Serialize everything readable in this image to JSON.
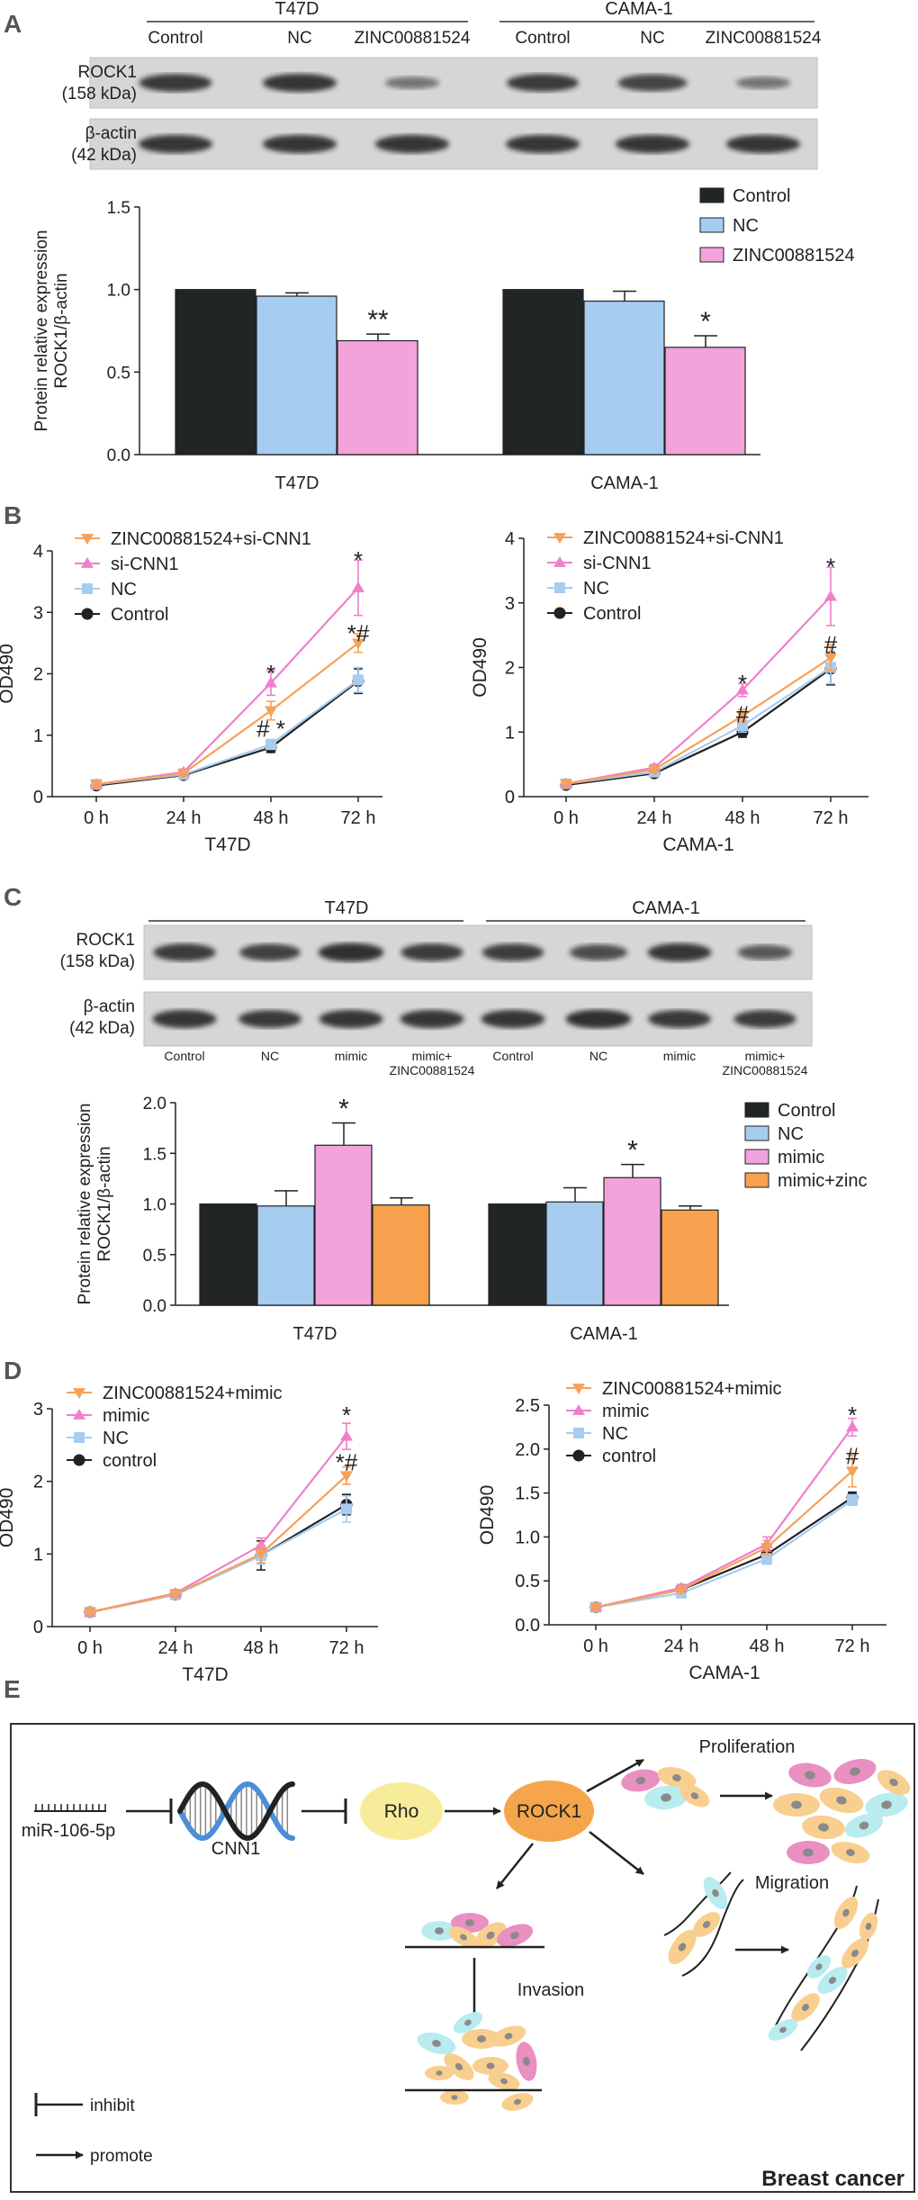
{
  "panels": {
    "a": {
      "letter": "A",
      "blot": {
        "groups": [
          "T47D",
          "CAMA-1"
        ],
        "lanes": [
          "Control",
          "NC",
          "ZINC00881524",
          "Control",
          "NC",
          "ZINC00881524"
        ],
        "rows": [
          {
            "name": "ROCK1",
            "kda": "(158 kDa)",
            "intensity": [
              0.82,
              0.85,
              0.3,
              0.8,
              0.72,
              0.3
            ]
          },
          {
            "name": "β-actin",
            "kda": "(42 kDa)",
            "intensity": [
              0.85,
              0.85,
              0.85,
              0.85,
              0.85,
              0.85
            ]
          }
        ]
      }
    },
    "b": {
      "letter": "B"
    },
    "c": {
      "letter": "C",
      "blot": {
        "groups": [
          "T47D",
          "CAMA-1"
        ],
        "lanes": [
          "Control",
          "NC",
          "mimic",
          "mimic+\nZINC00881524",
          "Control",
          "NC",
          "mimic",
          "mimic+\nZINC00881524"
        ],
        "rows": [
          {
            "name": "ROCK1",
            "kda": "(158 kDa)",
            "intensity": [
              0.8,
              0.75,
              0.9,
              0.8,
              0.78,
              0.65,
              0.85,
              0.55
            ]
          },
          {
            "name": "β-actin",
            "kda": "(42 kDa)",
            "intensity": [
              0.85,
              0.82,
              0.85,
              0.85,
              0.85,
              0.9,
              0.82,
              0.8
            ]
          }
        ]
      }
    },
    "d": {
      "letter": "D"
    },
    "e": {
      "letter": "E",
      "labels": {
        "mir": "miR-106-5p",
        "cnn1": "CNN1",
        "rho": "Rho",
        "rock1": "ROCK1",
        "proliferation": "Proliferation",
        "migration": "Migration",
        "invasion": "Invasion",
        "inhibit": "inhibit",
        "promote": "promote",
        "title": "Breast cancer"
      },
      "colors": {
        "rho": "#f7ec9a",
        "rock1": "#f5a54b",
        "border": "#333333",
        "dna_black": "#222222",
        "dna_blue": "#4a8fd6"
      },
      "cell_colors": [
        "#e98fc1",
        "#f8cf8f",
        "#b9ecef"
      ]
    }
  },
  "chart_data": [
    {
      "id": "bar-a",
      "type": "bar",
      "ylabel": [
        "Protein relative expression",
        "ROCK1/β-actin"
      ],
      "ylim": [
        0,
        1.5
      ],
      "yticks": [
        "0.0",
        "0.5",
        "1.0",
        "1.5"
      ],
      "categories": [
        "T47D",
        "CAMA-1"
      ],
      "series": [
        {
          "name": "Control",
          "color": "#222526",
          "values": [
            1.0,
            1.0
          ],
          "err": [
            0,
            0
          ]
        },
        {
          "name": "NC",
          "color": "#a6ccf0",
          "values": [
            0.96,
            0.93
          ],
          "err": [
            0.02,
            0.06
          ]
        },
        {
          "name": "ZINC00881524",
          "color": "#f2a3db",
          "values": [
            0.69,
            0.65
          ],
          "err": [
            0.04,
            0.07
          ]
        }
      ],
      "annotations": [
        {
          "category": 0,
          "series": 2,
          "text": "**"
        },
        {
          "category": 1,
          "series": 2,
          "text": "*"
        }
      ],
      "legend": "top-right"
    },
    {
      "id": "line-b1",
      "type": "line",
      "xlabel": "T47D",
      "ylabel": "OD490",
      "categories": [
        "0 h",
        "24 h",
        "48 h",
        "72 h"
      ],
      "ylim": [
        0,
        4
      ],
      "yticks": [
        "0",
        "1",
        "2",
        "3",
        "4"
      ],
      "series": [
        {
          "name": "ZINC00881524+si-CNN1",
          "marker": "tri-down",
          "color": "#f5a15a",
          "values": [
            0.2,
            0.38,
            1.4,
            2.5
          ],
          "err": [
            0.03,
            0.05,
            0.15,
            0.15
          ]
        },
        {
          "name": "si-CNN1",
          "marker": "tri-up",
          "color": "#ef7fcb",
          "values": [
            0.2,
            0.4,
            1.85,
            3.4
          ],
          "err": [
            0.03,
            0.05,
            0.2,
            0.45
          ]
        },
        {
          "name": "NC",
          "marker": "square",
          "color": "#a6ccf0",
          "values": [
            0.2,
            0.36,
            0.85,
            1.9
          ],
          "err": [
            0.03,
            0.05,
            0.08,
            0.2
          ]
        },
        {
          "name": "Control",
          "marker": "circle",
          "color": "#222222",
          "values": [
            0.18,
            0.35,
            0.8,
            1.88
          ],
          "err": [
            0.03,
            0.05,
            0.08,
            0.2
          ]
        }
      ],
      "annotations": [
        {
          "x": 2,
          "y": 2.05,
          "text": "*"
        },
        {
          "x": 2,
          "y": 1.15,
          "text": "#  *"
        },
        {
          "x": 3,
          "y": 3.9,
          "text": "*"
        },
        {
          "x": 3,
          "y": 2.7,
          "text": "*#"
        }
      ],
      "legend": "top-left"
    },
    {
      "id": "line-b2",
      "type": "line",
      "xlabel": "CAMA-1",
      "ylabel": "OD490",
      "categories": [
        "0 h",
        "24 h",
        "48 h",
        "72 h"
      ],
      "ylim": [
        0,
        4
      ],
      "yticks": [
        "0",
        "1",
        "2",
        "3",
        "4"
      ],
      "series": [
        {
          "name": "ZINC00881524+si-CNN1",
          "marker": "tri-down",
          "color": "#f5a15a",
          "values": [
            0.2,
            0.42,
            1.25,
            2.15
          ],
          "err": [
            0.03,
            0.05,
            0.1,
            0.2
          ]
        },
        {
          "name": "si-CNN1",
          "marker": "tri-up",
          "color": "#ef7fcb",
          "values": [
            0.2,
            0.45,
            1.65,
            3.1
          ],
          "err": [
            0.03,
            0.05,
            0.1,
            0.45
          ]
        },
        {
          "name": "NC",
          "marker": "square",
          "color": "#a6ccf0",
          "values": [
            0.2,
            0.38,
            1.1,
            2.0
          ],
          "err": [
            0.03,
            0.05,
            0.1,
            0.25
          ]
        },
        {
          "name": "Control",
          "marker": "circle",
          "color": "#222222",
          "values": [
            0.18,
            0.36,
            1.0,
            1.98
          ],
          "err": [
            0.03,
            0.05,
            0.08,
            0.25
          ]
        }
      ],
      "annotations": [
        {
          "x": 2,
          "y": 1.8,
          "text": "*"
        },
        {
          "x": 2,
          "y": 1.32,
          "text": "#"
        },
        {
          "x": 3,
          "y": 3.6,
          "text": "*"
        },
        {
          "x": 3,
          "y": 2.4,
          "text": "#"
        }
      ],
      "legend": "top-left"
    },
    {
      "id": "bar-c",
      "type": "bar",
      "ylabel": [
        "Protein relative expression",
        "ROCK1/β-actin"
      ],
      "ylim": [
        0,
        2.0
      ],
      "yticks": [
        "0.0",
        "0.5",
        "1.0",
        "1.5",
        "2.0"
      ],
      "categories": [
        "T47D",
        "CAMA-1"
      ],
      "series": [
        {
          "name": "Control",
          "color": "#222526",
          "values": [
            1.0,
            1.0
          ],
          "err": [
            0,
            0
          ]
        },
        {
          "name": "NC",
          "color": "#a6ccf0",
          "values": [
            0.98,
            1.02
          ],
          "err": [
            0.15,
            0.14
          ]
        },
        {
          "name": "mimic",
          "color": "#f2a3db",
          "values": [
            1.58,
            1.26
          ],
          "err": [
            0.22,
            0.13
          ]
        },
        {
          "name": "mimic+zinc",
          "color": "#f7a04d",
          "values": [
            0.99,
            0.94
          ],
          "err": [
            0.07,
            0.04
          ]
        }
      ],
      "annotations": [
        {
          "category": 0,
          "series": 2,
          "text": "*"
        },
        {
          "category": 1,
          "series": 2,
          "text": "*"
        }
      ],
      "legend": "right"
    },
    {
      "id": "line-d1",
      "type": "line",
      "xlabel": "T47D",
      "ylabel": "OD490",
      "categories": [
        "0 h",
        "24 h",
        "48 h",
        "72 h"
      ],
      "ylim": [
        0,
        3
      ],
      "yticks": [
        "0",
        "1",
        "2",
        "3"
      ],
      "series": [
        {
          "name": "ZINC00881524+mimic",
          "marker": "tri-down",
          "color": "#f5a15a",
          "values": [
            0.2,
            0.45,
            1.0,
            2.08
          ],
          "err": [
            0.03,
            0.05,
            0.12,
            0.12
          ]
        },
        {
          "name": "mimic",
          "marker": "tri-up",
          "color": "#ef7fcb",
          "values": [
            0.2,
            0.46,
            1.12,
            2.62
          ],
          "err": [
            0.03,
            0.05,
            0.1,
            0.18
          ]
        },
        {
          "name": "NC",
          "marker": "square",
          "color": "#a6ccf0",
          "values": [
            0.2,
            0.44,
            0.98,
            1.62
          ],
          "err": [
            0.03,
            0.05,
            0.12,
            0.18
          ]
        },
        {
          "name": "control",
          "marker": "circle",
          "color": "#222222",
          "values": [
            0.2,
            0.44,
            0.98,
            1.68
          ],
          "err": [
            0.03,
            0.05,
            0.2,
            0.14
          ]
        }
      ],
      "annotations": [
        {
          "x": 3,
          "y": 2.95,
          "text": "*"
        },
        {
          "x": 3,
          "y": 2.3,
          "text": "*#"
        }
      ],
      "legend": "top-left"
    },
    {
      "id": "line-d2",
      "type": "line",
      "xlabel": "CAMA-1",
      "ylabel": "OD490",
      "categories": [
        "0 h",
        "24 h",
        "48 h",
        "72 h"
      ],
      "ylim": [
        0,
        2.5
      ],
      "yticks": [
        "0.0",
        "0.5",
        "1.0",
        "1.5",
        "2.0",
        "2.5"
      ],
      "series": [
        {
          "name": "ZINC00881524+mimic",
          "marker": "tri-down",
          "color": "#f5a15a",
          "values": [
            0.2,
            0.4,
            0.88,
            1.75
          ],
          "err": [
            0.03,
            0.04,
            0.08,
            0.18
          ]
        },
        {
          "name": "mimic",
          "marker": "tri-up",
          "color": "#ef7fcb",
          "values": [
            0.2,
            0.42,
            0.92,
            2.25
          ],
          "err": [
            0.03,
            0.04,
            0.08,
            0.1
          ]
        },
        {
          "name": "NC",
          "marker": "square",
          "color": "#a6ccf0",
          "values": [
            0.2,
            0.36,
            0.75,
            1.42
          ],
          "err": [
            0.03,
            0.04,
            0.06,
            0.06
          ]
        },
        {
          "name": "control",
          "marker": "circle",
          "color": "#222222",
          "values": [
            0.2,
            0.4,
            0.8,
            1.45
          ],
          "err": [
            0.03,
            0.04,
            0.08,
            0.06
          ]
        }
      ],
      "annotations": [
        {
          "x": 3,
          "y": 2.42,
          "text": "*"
        },
        {
          "x": 3,
          "y": 1.95,
          "text": "#"
        }
      ],
      "legend": "top-left"
    }
  ]
}
